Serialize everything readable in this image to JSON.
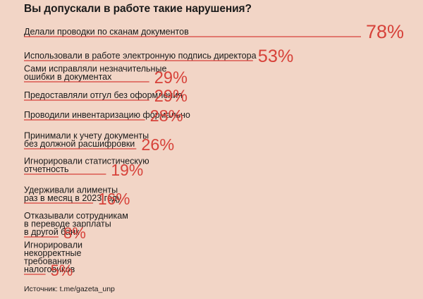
{
  "title": "Вы допускали в работе такие нарушения?",
  "source": "Источник: t.me/gazeta_unp",
  "colors": {
    "background": "#f2d5c6",
    "accent": "#d7423a",
    "text": "#1a1a1a"
  },
  "chart_data": {
    "type": "bar",
    "title": "Вы допускали в работе такие нарушения?",
    "unit": "%",
    "categories": [
      [
        "Делали проводки по сканам документов"
      ],
      [
        "Использовали в работе электронную подпись директора"
      ],
      [
        "Сами исправляли незначительные",
        "ошибки в документах"
      ],
      [
        "Предоставляли отгул без оформления"
      ],
      [
        "Проводили инвентаризацию формально"
      ],
      [
        "Принимали к учету документы",
        "без должной расшифровки"
      ],
      [
        "Игнорировали статистическую",
        "отчетность"
      ],
      [
        "Удерживали алименты",
        "раз в месяц в 2023 году"
      ],
      [
        "Отказывали сотрудникам",
        "в переводе зарплаты",
        "в другой банк"
      ],
      [
        "Игнорировали",
        "некорректные",
        "требования",
        "налоговиков"
      ]
    ],
    "values": [
      78,
      53,
      29,
      29,
      28,
      26,
      19,
      16,
      8,
      5
    ],
    "value_labels": [
      "78%",
      "53%",
      "29%",
      "29%",
      "28%",
      "26%",
      "19%",
      "16%",
      "8%",
      "5%"
    ]
  }
}
